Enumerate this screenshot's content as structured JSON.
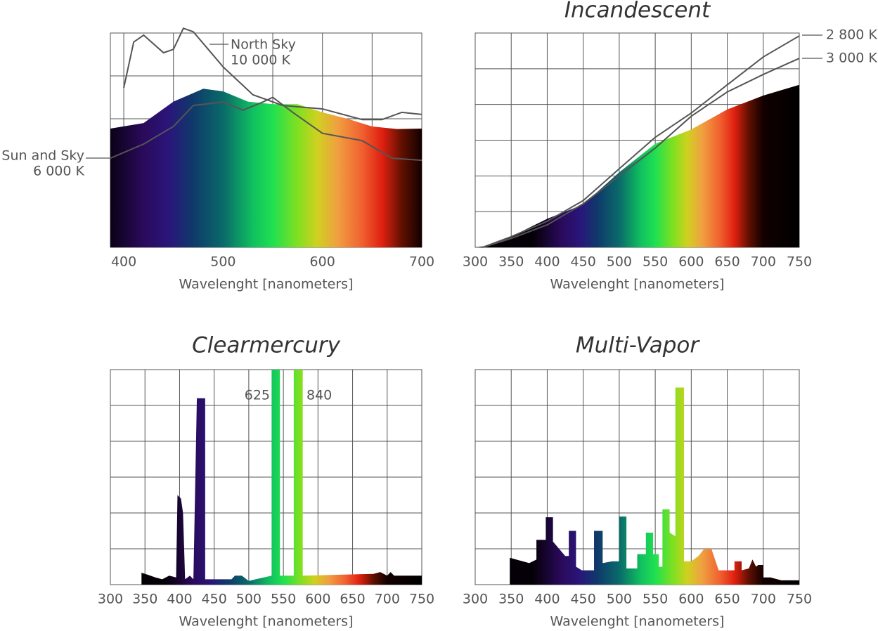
{
  "chart_data": [
    {
      "type": "area",
      "xlabel": "Wavelenght [nanometers]",
      "xlim": [
        386.5,
        700
      ],
      "ylim": [
        0,
        5
      ],
      "xticks": [
        400,
        500,
        600,
        700
      ],
      "xgrid": [
        400,
        450,
        500,
        550,
        600,
        650,
        700
      ],
      "yticks": [
        0,
        1,
        2,
        3,
        4,
        5
      ],
      "grid": true,
      "x": [
        386.5,
        420,
        450,
        480,
        500,
        525,
        550,
        575,
        600,
        625,
        650,
        675,
        700
      ],
      "values": [
        2.77,
        2.9,
        3.4,
        3.7,
        3.64,
        3.4,
        3.34,
        3.34,
        3.15,
        3.0,
        2.82,
        2.76,
        2.77
      ],
      "series": [
        {
          "name": "North Sky",
          "label": "10 000 K",
          "color": "#555555",
          "x": [
            400,
            410,
            420,
            440,
            450,
            460,
            470,
            500,
            530,
            560,
            600,
            640,
            660,
            680,
            700
          ],
          "values": [
            3.72,
            4.79,
            4.95,
            4.54,
            4.62,
            5.11,
            5.03,
            4.21,
            3.56,
            3.31,
            3.23,
            2.98,
            2.98,
            3.15,
            3.1
          ]
        },
        {
          "name": "Sun and Sky",
          "label": "6 000 K",
          "color": "#555555",
          "x": [
            386.5,
            420,
            450,
            470,
            500,
            520,
            540,
            550,
            570,
            600,
            640,
            670,
            700
          ],
          "values": [
            2.08,
            2.41,
            2.82,
            3.31,
            3.39,
            3.2,
            3.39,
            3.5,
            3.15,
            2.66,
            2.49,
            2.08,
            2.03
          ]
        }
      ]
    },
    {
      "type": "area",
      "title": "Incandescent",
      "xlabel": "Wavelenght [nanometers]",
      "xlim": [
        300,
        750
      ],
      "ylim": [
        0,
        6
      ],
      "xticks": [
        300,
        350,
        400,
        450,
        500,
        550,
        600,
        650,
        700,
        750
      ],
      "yticks": [
        0,
        1,
        2,
        3,
        4,
        5,
        6
      ],
      "grid": true,
      "x": [
        300,
        320,
        350,
        400,
        450,
        500,
        550,
        600,
        650,
        700,
        750
      ],
      "values": [
        0,
        0.05,
        0.3,
        0.8,
        1.2,
        2.1,
        2.9,
        3.3,
        3.86,
        4.25,
        4.55
      ],
      "series": [
        {
          "name": "2 800 K",
          "color": "#555555",
          "x": [
            310,
            350,
            400,
            450,
            500,
            550,
            600,
            650,
            700,
            750
          ],
          "values": [
            0,
            0.3,
            0.73,
            1.31,
            2.2,
            3.08,
            3.76,
            4.55,
            5.33,
            5.92
          ]
        },
        {
          "name": "3 000 K",
          "color": "#555555",
          "x": [
            310,
            350,
            400,
            450,
            500,
            550,
            600,
            650,
            700,
            750
          ],
          "values": [
            0,
            0.25,
            0.63,
            1.22,
            2.0,
            2.78,
            3.67,
            4.35,
            4.84,
            5.29
          ]
        }
      ]
    },
    {
      "type": "area",
      "title": "Clearmercury",
      "xlabel": "Wavelenght [nanometers]",
      "xlim": [
        300,
        750
      ],
      "ylim": [
        0,
        6
      ],
      "xticks": [
        300,
        350,
        400,
        450,
        500,
        550,
        600,
        650,
        700,
        750
      ],
      "yticks": [
        0,
        1,
        2,
        3,
        4,
        5,
        6
      ],
      "grid": true,
      "annotations": [
        "625",
        "840"
      ],
      "x": [
        300,
        345,
        345,
        355,
        365,
        375,
        385,
        395,
        397,
        402,
        405,
        408,
        415,
        420,
        425,
        437,
        437,
        475,
        480,
        490,
        500,
        510,
        533,
        533,
        545,
        545,
        565,
        565,
        578,
        578,
        680,
        690,
        700,
        705,
        710,
        750
      ],
      "values": [
        0,
        0,
        0.33,
        0.27,
        0.2,
        0.15,
        0.25,
        0.2,
        2.5,
        2.4,
        2.0,
        0.15,
        0.25,
        0.15,
        5.2,
        5.2,
        0.15,
        0.15,
        0.25,
        0.25,
        0.1,
        0.15,
        0.25,
        6.2,
        6.2,
        0.25,
        0.25,
        6.2,
        6.2,
        0.25,
        0.3,
        0.35,
        0.25,
        0.35,
        0.25,
        0.25
      ]
    },
    {
      "type": "area",
      "title": "Multi-Vapor",
      "xlabel": "Wavelenght [nanometers]",
      "xlim": [
        300,
        750
      ],
      "ylim": [
        0,
        6
      ],
      "xticks": [
        300,
        350,
        400,
        450,
        500,
        550,
        600,
        650,
        700,
        750
      ],
      "yticks": [
        0,
        1,
        2,
        3,
        4,
        5,
        6
      ],
      "grid": true,
      "x": [
        300,
        348,
        348,
        375,
        385,
        385,
        398,
        398,
        408,
        408,
        425,
        430,
        430,
        440,
        440,
        448,
        465,
        465,
        477,
        477,
        490,
        500,
        500,
        510,
        510,
        525,
        525,
        537,
        537,
        547,
        547,
        555,
        555,
        560,
        560,
        570,
        570,
        578,
        578,
        590,
        590,
        600,
        610,
        618,
        628,
        638,
        660,
        660,
        670,
        670,
        680,
        685,
        690,
        693,
        700,
        700,
        710,
        725,
        750
      ],
      "values": [
        0,
        0,
        0.75,
        0.6,
        0.7,
        1.25,
        1.25,
        1.88,
        1.88,
        1.2,
        0.8,
        0.8,
        1.5,
        1.5,
        0.5,
        0.4,
        0.4,
        1.5,
        1.5,
        0.6,
        0.65,
        0.65,
        1.9,
        1.9,
        0.45,
        0.45,
        0.85,
        0.85,
        1.45,
        1.45,
        0.85,
        0.85,
        0.5,
        0.5,
        2.1,
        2.1,
        1.45,
        1.35,
        5.5,
        5.5,
        0.65,
        0.65,
        0.8,
        1.0,
        1.0,
        0.4,
        0.4,
        0.65,
        0.65,
        0.4,
        0.45,
        0.7,
        0.5,
        0.55,
        0.55,
        0.2,
        0.2,
        0.12,
        0.12
      ]
    }
  ]
}
